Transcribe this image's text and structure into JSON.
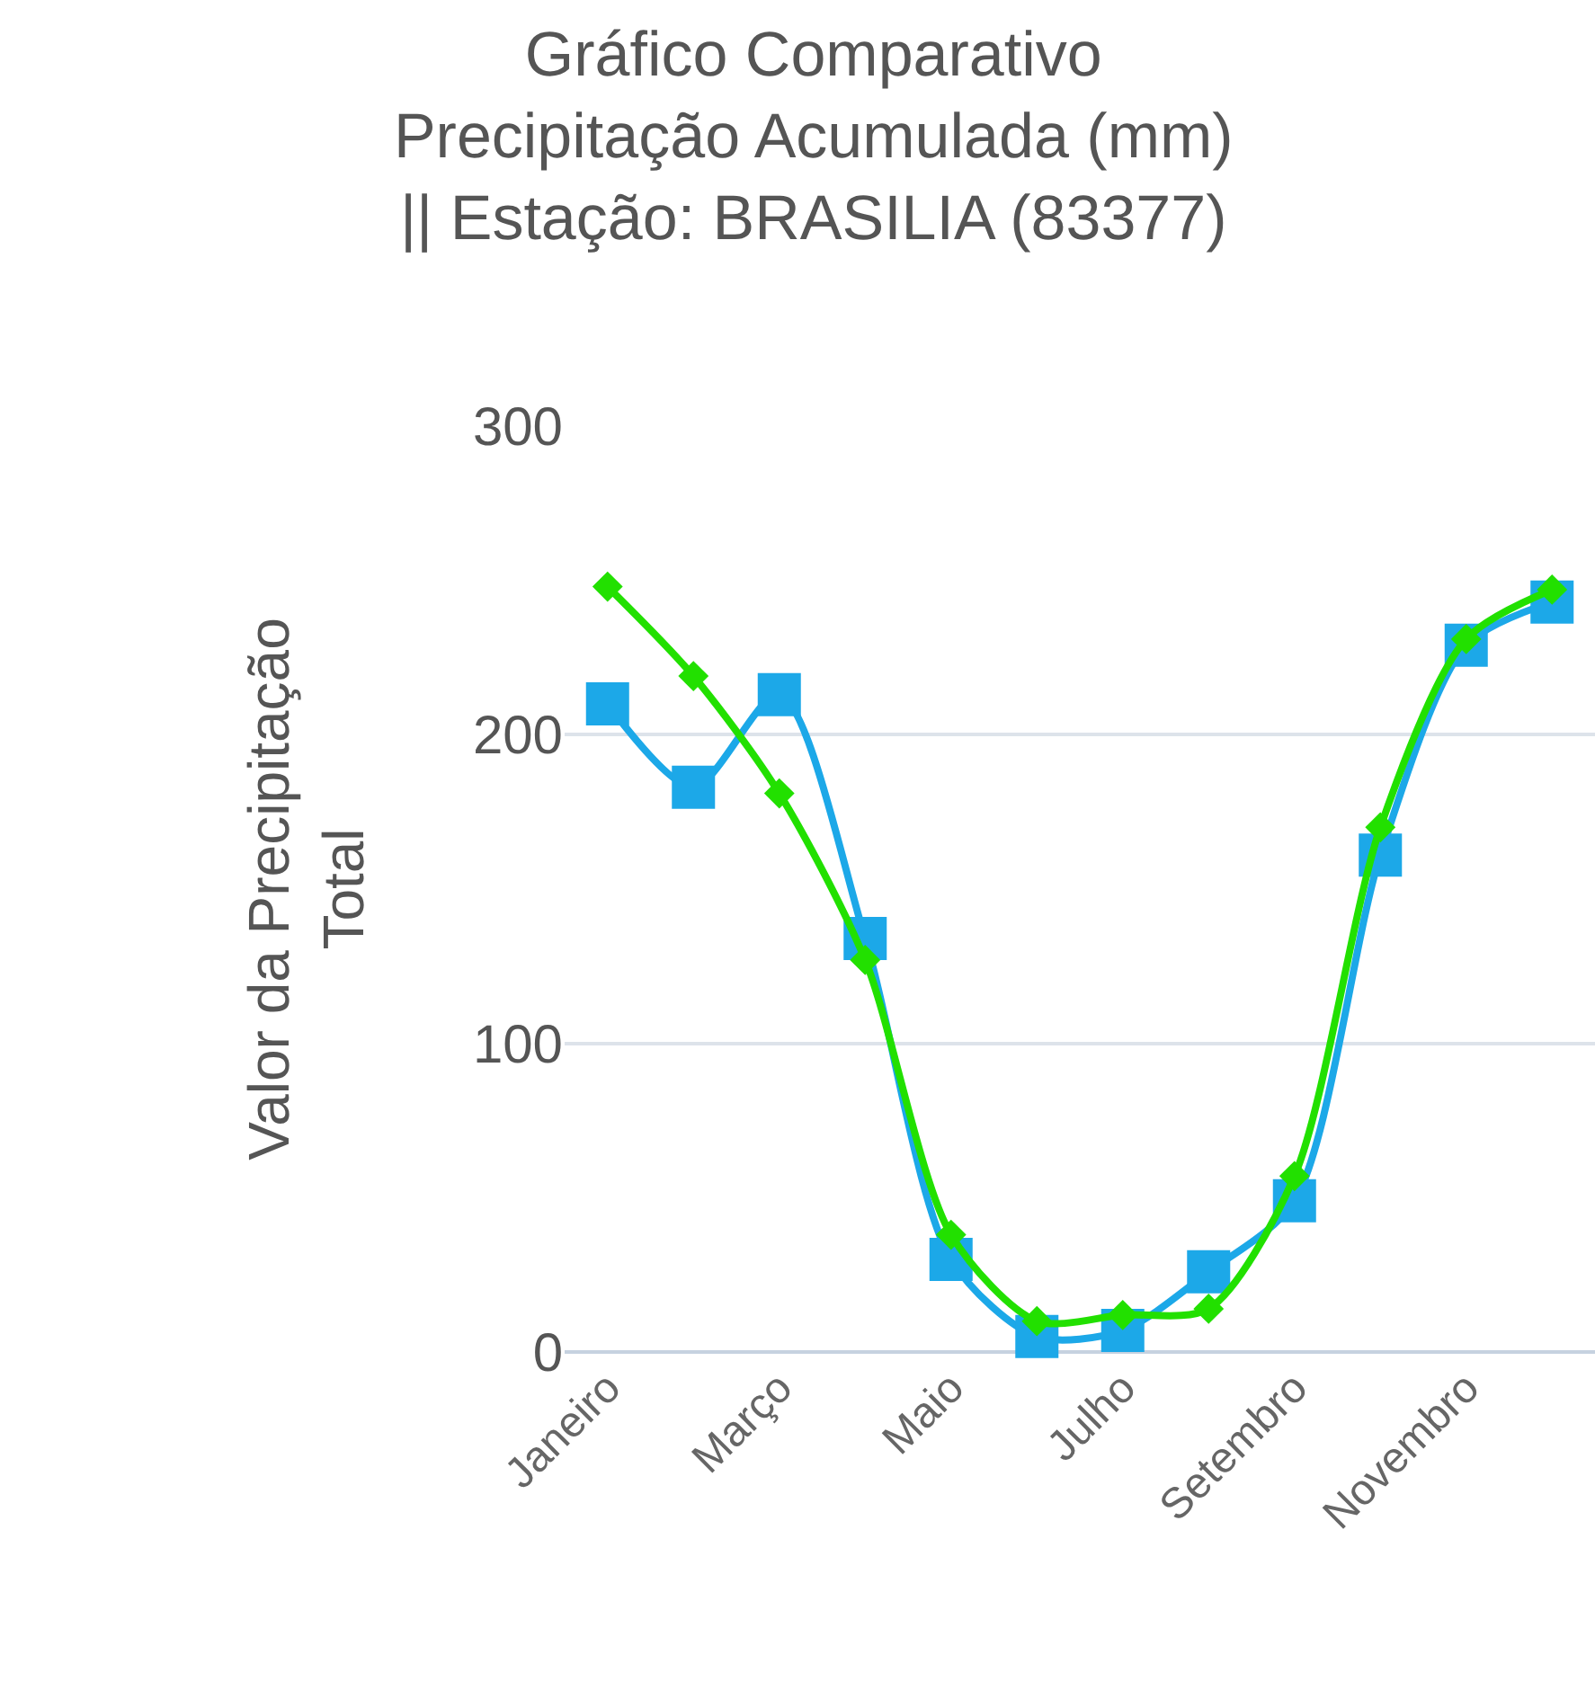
{
  "chart_data": {
    "type": "line",
    "title": "Gráfico Comparativo\nPrecipitação Acumulada (mm)\n|| Estação: BRASILIA (83377)",
    "ylabel": "Valor da Precipitação\nTotal",
    "categories": [
      "Janeiro",
      null,
      "Março",
      null,
      "Maio",
      null,
      "Julho",
      null,
      "Setembro",
      null,
      "Novembro",
      null
    ],
    "series": [
      {
        "color": "#22e000",
        "marker": "diamond",
        "values": [
          248,
          219,
          181,
          127,
          38,
          10,
          12,
          14,
          57,
          170,
          231,
          247
        ]
      },
      {
        "color": "#1ca8e8",
        "marker": "square",
        "values": [
          210,
          183,
          213,
          134,
          30,
          5,
          7,
          26,
          49,
          161,
          229,
          243
        ]
      }
    ],
    "ylim": [
      0,
      300
    ],
    "yticks": [
      0,
      100,
      200,
      300
    ],
    "grid": "y",
    "line_style": "solid"
  }
}
